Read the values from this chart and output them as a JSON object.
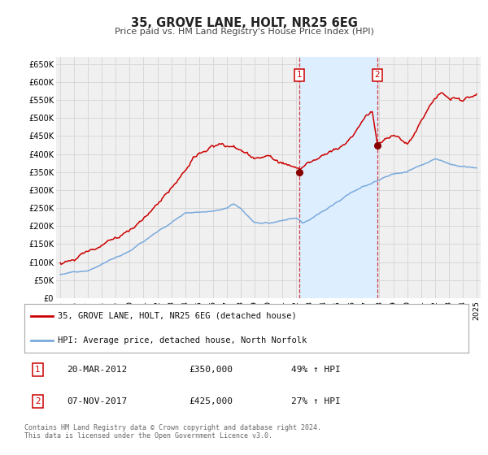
{
  "title": "35, GROVE LANE, HOLT, NR25 6EG",
  "subtitle": "Price paid vs. HM Land Registry's House Price Index (HPI)",
  "ylim": [
    0,
    670000
  ],
  "xlim": [
    1994.7,
    2025.3
  ],
  "yticks": [
    0,
    50000,
    100000,
    150000,
    200000,
    250000,
    300000,
    350000,
    400000,
    450000,
    500000,
    550000,
    600000,
    650000
  ],
  "ytick_labels": [
    "£0",
    "£50K",
    "£100K",
    "£150K",
    "£200K",
    "£250K",
    "£300K",
    "£350K",
    "£400K",
    "£450K",
    "£500K",
    "£550K",
    "£600K",
    "£650K"
  ],
  "xticks": [
    1995,
    1996,
    1997,
    1998,
    1999,
    2000,
    2001,
    2002,
    2003,
    2004,
    2005,
    2006,
    2007,
    2008,
    2009,
    2010,
    2011,
    2012,
    2013,
    2014,
    2015,
    2016,
    2017,
    2018,
    2019,
    2020,
    2021,
    2022,
    2023,
    2024,
    2025
  ],
  "background_color": "#ffffff",
  "plot_bg_color": "#f0f0f0",
  "grid_color": "#d8d8d8",
  "red_line_color": "#cc0000",
  "blue_line_color": "#7aaadd",
  "sale1_x": 2012.22,
  "sale1_y": 350000,
  "sale2_x": 2017.85,
  "sale2_y": 425000,
  "shade_color": "#ddeeff",
  "vline_color": "#cc0000",
  "marker_color": "#880000",
  "legend_label_red": "35, GROVE LANE, HOLT, NR25 6EG (detached house)",
  "legend_label_blue": "HPI: Average price, detached house, North Norfolk",
  "annotation1_date": "20-MAR-2012",
  "annotation1_price": "£350,000",
  "annotation1_hpi": "49% ↑ HPI",
  "annotation2_date": "07-NOV-2017",
  "annotation2_price": "£425,000",
  "annotation2_hpi": "27% ↑ HPI",
  "footer": "Contains HM Land Registry data © Crown copyright and database right 2024.\nThis data is licensed under the Open Government Licence v3.0."
}
